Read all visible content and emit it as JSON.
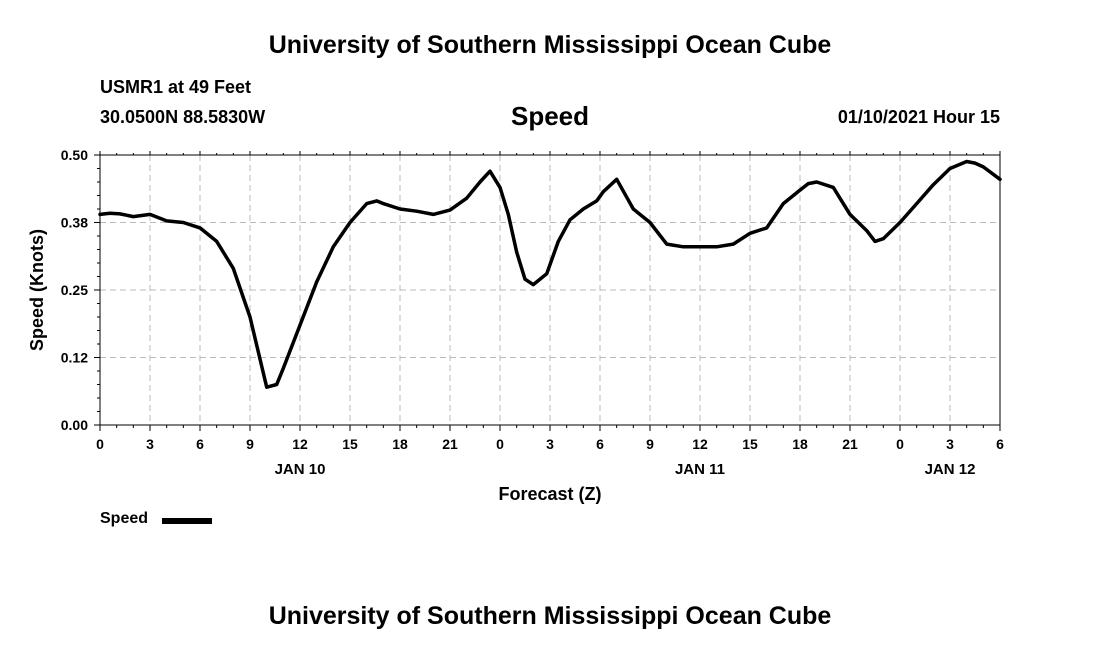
{
  "header": {
    "title": "University of Southern Mississippi Ocean Cube",
    "station": "USMR1 at 49 Feet",
    "coords": "30.0500N 88.5830W",
    "variable": "Speed",
    "timestamp": "01/10/2021 Hour 15"
  },
  "footer": {
    "title": "University of Southern Mississippi Ocean Cube"
  },
  "legend": {
    "label": "Speed"
  },
  "colors": {
    "line": "#000000",
    "grid": "#bbbbbb"
  },
  "chart_data": {
    "type": "line",
    "title": "Speed",
    "xlabel": "Forecast (Z)",
    "ylabel": "Speed (Knots)",
    "ylim": [
      0,
      0.5
    ],
    "yticks": [
      "0.00",
      "0.12",
      "0.25",
      "0.38",
      "0.50"
    ],
    "xlim": [
      0,
      54
    ],
    "xticks": [
      {
        "x": 0,
        "label": "0"
      },
      {
        "x": 3,
        "label": "3"
      },
      {
        "x": 6,
        "label": "6"
      },
      {
        "x": 9,
        "label": "9"
      },
      {
        "x": 12,
        "label": "12"
      },
      {
        "x": 15,
        "label": "15"
      },
      {
        "x": 18,
        "label": "18"
      },
      {
        "x": 21,
        "label": "21"
      },
      {
        "x": 24,
        "label": "0"
      },
      {
        "x": 27,
        "label": "3"
      },
      {
        "x": 30,
        "label": "6"
      },
      {
        "x": 33,
        "label": "9"
      },
      {
        "x": 36,
        "label": "12"
      },
      {
        "x": 39,
        "label": "15"
      },
      {
        "x": 42,
        "label": "18"
      },
      {
        "x": 45,
        "label": "21"
      },
      {
        "x": 48,
        "label": "0"
      },
      {
        "x": 51,
        "label": "3"
      },
      {
        "x": 54,
        "label": "6"
      }
    ],
    "date_labels": [
      {
        "x": 12,
        "label": "JAN 10"
      },
      {
        "x": 36,
        "label": "JAN 11"
      },
      {
        "x": 51,
        "label": "JAN 12"
      }
    ],
    "grid": true,
    "legend_position": "bottom-left",
    "series": [
      {
        "name": "Speed",
        "x": [
          0,
          0.6,
          1.2,
          2,
          3,
          4,
          5,
          6,
          7,
          8,
          9,
          10,
          10.6,
          11,
          12,
          13,
          14,
          15,
          16,
          16.6,
          17,
          18,
          19,
          20,
          21,
          22,
          22.8,
          23.4,
          24,
          24.5,
          25,
          25.5,
          26,
          26.8,
          27.5,
          28.2,
          29,
          29.8,
          30.2,
          31,
          32,
          33,
          34,
          35,
          36,
          37,
          38,
          39,
          40,
          41,
          42,
          42.5,
          43,
          44,
          45,
          46,
          46.5,
          47,
          48,
          49,
          50,
          51,
          52,
          52.5,
          53,
          54
        ],
        "y": [
          0.39,
          0.392,
          0.391,
          0.386,
          0.39,
          0.378,
          0.375,
          0.365,
          0.34,
          0.29,
          0.2,
          0.07,
          0.075,
          0.105,
          0.185,
          0.265,
          0.33,
          0.375,
          0.41,
          0.415,
          0.41,
          0.4,
          0.396,
          0.39,
          0.398,
          0.42,
          0.45,
          0.47,
          0.44,
          0.39,
          0.32,
          0.27,
          0.26,
          0.28,
          0.34,
          0.38,
          0.4,
          0.415,
          0.432,
          0.455,
          0.4,
          0.375,
          0.335,
          0.33,
          0.33,
          0.33,
          0.335,
          0.355,
          0.365,
          0.41,
          0.435,
          0.447,
          0.45,
          0.44,
          0.39,
          0.36,
          0.34,
          0.345,
          0.375,
          0.41,
          0.445,
          0.475,
          0.488,
          0.485,
          0.478,
          0.455
        ]
      }
    ]
  }
}
